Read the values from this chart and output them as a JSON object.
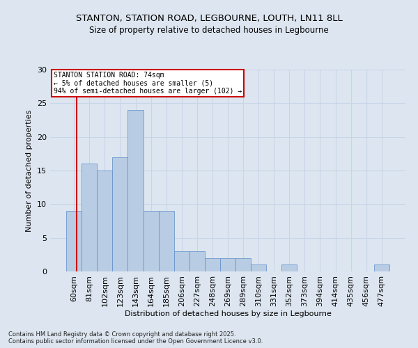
{
  "title_line1": "STANTON, STATION ROAD, LEGBOURNE, LOUTH, LN11 8LL",
  "title_line2": "Size of property relative to detached houses in Legbourne",
  "xlabel": "Distribution of detached houses by size in Legbourne",
  "ylabel": "Number of detached properties",
  "categories": [
    "60sqm",
    "81sqm",
    "102sqm",
    "123sqm",
    "143sqm",
    "164sqm",
    "185sqm",
    "206sqm",
    "227sqm",
    "248sqm",
    "269sqm",
    "289sqm",
    "310sqm",
    "331sqm",
    "352sqm",
    "373sqm",
    "394sqm",
    "414sqm",
    "435sqm",
    "456sqm",
    "477sqm"
  ],
  "values": [
    9,
    16,
    15,
    17,
    24,
    9,
    9,
    3,
    3,
    2,
    2,
    2,
    1,
    0,
    1,
    0,
    0,
    0,
    0,
    0,
    1
  ],
  "bar_color": "#b8cce4",
  "bar_edge_color": "#5b8bc9",
  "annotation_title": "STANTON STATION ROAD: 74sqm",
  "annotation_line1": "← 5% of detached houses are smaller (5)",
  "annotation_line2": "94% of semi-detached houses are larger (102) →",
  "annotation_box_color": "#ffffff",
  "annotation_box_edge": "#cc0000",
  "subject_line_color": "#cc0000",
  "ylim": [
    0,
    30
  ],
  "yticks": [
    0,
    5,
    10,
    15,
    20,
    25,
    30
  ],
  "grid_color": "#c8d4e8",
  "background_color": "#dde6f0",
  "footer_line1": "Contains HM Land Registry data © Crown copyright and database right 2025.",
  "footer_line2": "Contains public sector information licensed under the Open Government Licence v3.0."
}
